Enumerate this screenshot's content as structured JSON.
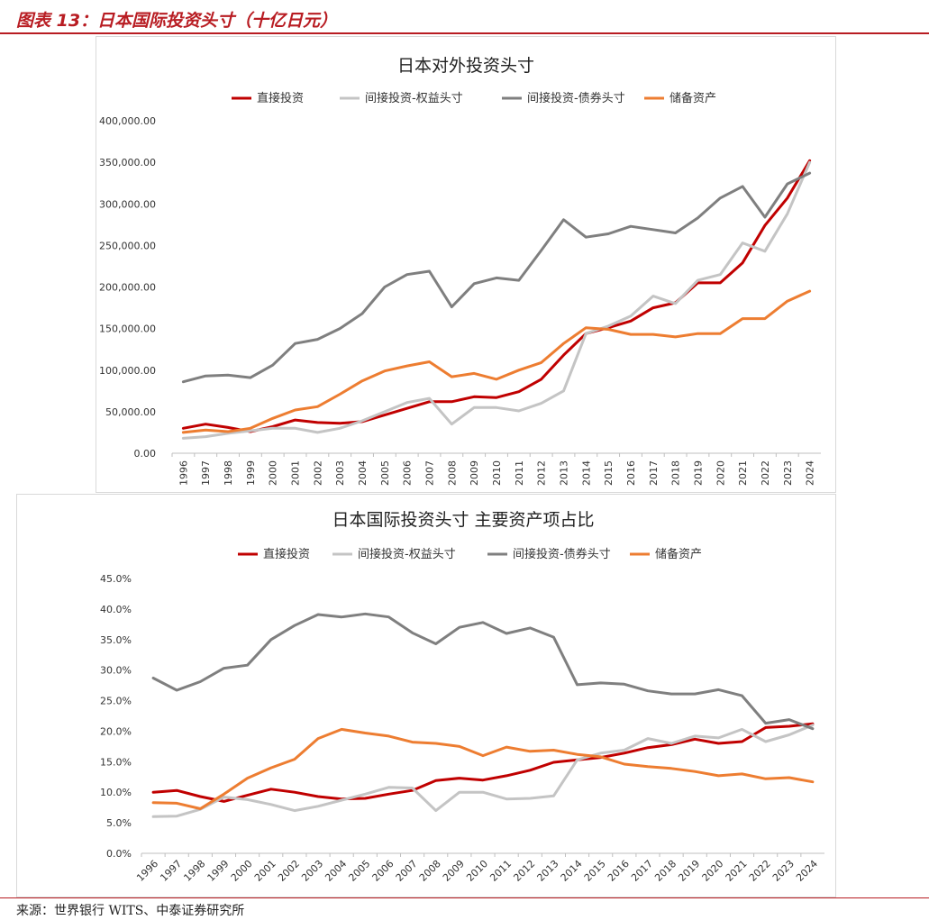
{
  "figure_title": "图表 13：日本国际投资头寸（十亿日元）",
  "source": "来源：世界银行 WITS、中泰证券研究所",
  "colors": {
    "accent": "#b81c22",
    "series": [
      "#c00000",
      "#c4c4c4",
      "#7f7f7f",
      "#ed7d31"
    ]
  },
  "chart_data": [
    {
      "type": "line",
      "title": "日本对外投资头寸",
      "xlabel": "",
      "ylabel": "",
      "ylim": [
        0,
        400000
      ],
      "yticks": [
        "0.00",
        "50,000.00",
        "100,000.00",
        "150,000.00",
        "200,000.00",
        "250,000.00",
        "300,000.00",
        "350,000.00",
        "400,000.00"
      ],
      "legend_position": "top",
      "grid": false,
      "x": [
        "1996",
        "1997",
        "1998",
        "1999",
        "2000",
        "2001",
        "2002",
        "2003",
        "2004",
        "2005",
        "2006",
        "2007",
        "2008",
        "2009",
        "2010",
        "2011",
        "2012",
        "2013",
        "2014",
        "2015",
        "2016",
        "2017",
        "2018",
        "2019",
        "2020",
        "2021",
        "2022",
        "2023",
        "2024"
      ],
      "series": [
        {
          "name": "直接投资",
          "values": [
            30000,
            35000,
            31000,
            26000,
            32000,
            40000,
            37000,
            36000,
            38000,
            46000,
            54000,
            62000,
            62000,
            68000,
            67000,
            74000,
            89000,
            118000,
            144000,
            151000,
            159000,
            175000,
            181000,
            205000,
            205000,
            229000,
            274000,
            307000,
            352000
          ]
        },
        {
          "name": "间接投资-权益头寸",
          "values": [
            18000,
            20000,
            24000,
            27000,
            30000,
            30000,
            25000,
            30000,
            39000,
            50000,
            61000,
            66000,
            35000,
            55000,
            55000,
            51000,
            60000,
            75000,
            144000,
            153000,
            165000,
            189000,
            180000,
            208000,
            215000,
            253000,
            243000,
            288000,
            350000
          ]
        },
        {
          "name": "间接投资-债券头寸",
          "values": [
            86000,
            93000,
            94000,
            91000,
            106000,
            132000,
            137000,
            150000,
            168000,
            200000,
            215000,
            219000,
            176000,
            204000,
            211000,
            208000,
            244000,
            281000,
            260000,
            264000,
            273000,
            269000,
            265000,
            283000,
            307000,
            321000,
            284000,
            324000,
            337000
          ]
        },
        {
          "name": "储备资产",
          "values": [
            25000,
            28000,
            26000,
            30000,
            42000,
            52000,
            56000,
            71000,
            87000,
            99000,
            105000,
            110000,
            92000,
            96000,
            89000,
            100000,
            109000,
            132000,
            151000,
            149000,
            143000,
            143000,
            140000,
            144000,
            144000,
            162000,
            162000,
            183000,
            195000
          ]
        }
      ]
    },
    {
      "type": "line",
      "title": "日本国际投资头寸 主要资产项占比",
      "xlabel": "",
      "ylabel": "",
      "ylim": [
        0,
        45
      ],
      "yticks": [
        "0.0%",
        "5.0%",
        "10.0%",
        "15.0%",
        "20.0%",
        "25.0%",
        "30.0%",
        "35.0%",
        "40.0%",
        "45.0%"
      ],
      "legend_position": "top",
      "grid": false,
      "x": [
        "1996",
        "1997",
        "1998",
        "1999",
        "2000",
        "2001",
        "2002",
        "2003",
        "2004",
        "2005",
        "2006",
        "2007",
        "2008",
        "2009",
        "2010",
        "2011",
        "2012",
        "2013",
        "2014",
        "2015",
        "2016",
        "2017",
        "2018",
        "2019",
        "2020",
        "2021",
        "2022",
        "2023",
        "2024"
      ],
      "series": [
        {
          "name": "直接投资",
          "values": [
            10.0,
            10.3,
            9.3,
            8.5,
            9.5,
            10.5,
            10.0,
            9.3,
            8.9,
            9.0,
            9.7,
            10.3,
            11.9,
            12.3,
            12.0,
            12.7,
            13.6,
            14.9,
            15.3,
            15.7,
            16.4,
            17.3,
            17.8,
            18.7,
            18.0,
            18.3,
            20.6,
            20.8,
            21.2
          ]
        },
        {
          "name": "间接投资-权益头寸",
          "values": [
            6.0,
            6.1,
            7.2,
            9.2,
            8.8,
            8.0,
            7.0,
            7.7,
            8.7,
            9.7,
            10.8,
            10.7,
            7.0,
            10.0,
            10.0,
            8.9,
            9.0,
            9.4,
            15.3,
            16.4,
            16.9,
            18.8,
            18.0,
            19.2,
            18.9,
            20.3,
            18.3,
            19.4,
            21.0
          ]
        },
        {
          "name": "间接投资-债券头寸",
          "values": [
            28.7,
            26.7,
            28.1,
            30.3,
            30.8,
            35.0,
            37.3,
            39.1,
            38.7,
            39.2,
            38.7,
            36.1,
            34.3,
            37.0,
            37.8,
            36.0,
            36.9,
            35.4,
            27.6,
            27.9,
            27.7,
            26.6,
            26.1,
            26.1,
            26.8,
            25.8,
            21.3,
            21.9,
            20.4
          ]
        },
        {
          "name": "储备资产",
          "values": [
            8.3,
            8.2,
            7.3,
            9.7,
            12.3,
            14.0,
            15.4,
            18.8,
            20.3,
            19.7,
            19.2,
            18.2,
            18.0,
            17.5,
            16.0,
            17.4,
            16.7,
            16.9,
            16.2,
            15.8,
            14.6,
            14.2,
            13.9,
            13.4,
            12.7,
            13.0,
            12.2,
            12.4,
            11.7
          ]
        }
      ]
    }
  ]
}
